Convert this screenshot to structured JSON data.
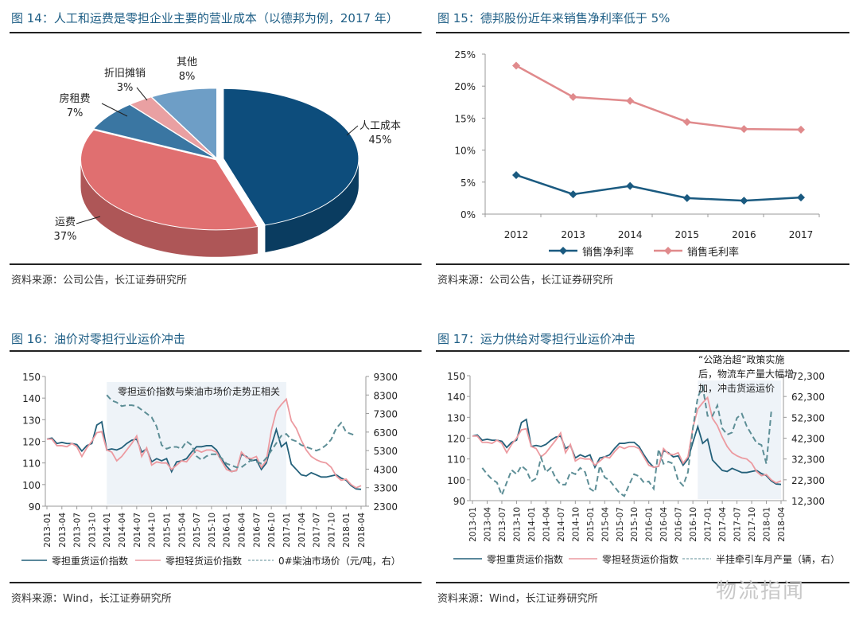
{
  "charts_text": {
    "c14_title": "图 14：人工和运费是零担企业主要的营业成本（以德邦为例，2017 年）",
    "c15_title": "图 15：德邦股份近年来销售净利率低于 5%",
    "c16_title": "图 16：油价对零担行业运价冲击",
    "c17_title": "图 17：运力供给对零担行业运价冲击",
    "c14_source": "资料来源：公司公告，长江证券研究所",
    "c15_source": "资料来源：公司公告，长江证券研究所",
    "c16_source": "资料来源：Wind，长江证券研究所",
    "c17_source": "资料来源：Wind，长江证券研究所",
    "watermark": "物流指闻"
  },
  "chart_data": [
    {
      "type": "pie",
      "title": "图 14：人工和运费是零担企业主要的营业成本（以德邦为例，2017 年）",
      "style": "3d-exploded",
      "slices": [
        {
          "label": "人工成本",
          "value": 45,
          "value_label": "45%",
          "color": "#0d4d7c"
        },
        {
          "label": "运费",
          "value": 37,
          "value_label": "37%",
          "color": "#e06f70"
        },
        {
          "label": "房租费",
          "value": 7,
          "value_label": "7%",
          "color": "#3a76a2"
        },
        {
          "label": "折旧摊销",
          "value": 3,
          "value_label": "3%",
          "color": "#e9a0a2"
        },
        {
          "label": "其他",
          "value": 8,
          "value_label": "8%",
          "color": "#6e9ec6"
        }
      ]
    },
    {
      "type": "line",
      "title": "图 15：德邦股份近年来销售净利率低于 5%",
      "categories": [
        "2012",
        "2013",
        "2014",
        "2015",
        "2016",
        "2017"
      ],
      "ylim": [
        0,
        25
      ],
      "yticks": [
        "0%",
        "5%",
        "10%",
        "15%",
        "20%",
        "25%"
      ],
      "legend": "bottom",
      "grid": false,
      "series": [
        {
          "name": "销售净利率",
          "color": "#1a5a80",
          "marker": "diamond",
          "values": [
            6.1,
            3.1,
            4.4,
            2.5,
            2.1,
            2.6
          ]
        },
        {
          "name": "销售毛利率",
          "color": "#e08a8c",
          "marker": "diamond",
          "values": [
            23.2,
            18.3,
            17.7,
            14.4,
            13.3,
            13.2
          ]
        }
      ]
    },
    {
      "type": "line",
      "title": "图 16：油价对零担行业运价冲击",
      "dual_axis": true,
      "ylim": [
        90,
        150
      ],
      "yticks": [
        "90",
        "100",
        "110",
        "120",
        "130",
        "140",
        "150"
      ],
      "y2lim": [
        2300,
        9300
      ],
      "y2ticks": [
        "2300",
        "3300",
        "4300",
        "5300",
        "6300",
        "7300",
        "8300",
        "9300"
      ],
      "xticks": [
        "2013-01",
        "2013-04",
        "2013-07",
        "2013-10",
        "2014-01",
        "2014-04",
        "2014-07",
        "2014-10",
        "2015-01",
        "2015-04",
        "2015-07",
        "2015-10",
        "2016-01",
        "2016-04",
        "2016-07",
        "2016-10",
        "2017-01",
        "2017-04",
        "2017-07",
        "2017-10",
        "2018-01",
        "2018-04"
      ],
      "shaded_range": [
        "2014-01",
        "2017-01"
      ],
      "annotation": "零担运价指数与柴油市场价走势正相关",
      "legend": "bottom",
      "series": [
        {
          "name": "零担重货运价指数",
          "axis": "left",
          "color": "#23607a",
          "dash": false,
          "values": [
            121,
            121.5,
            119,
            119.5,
            119,
            119,
            118.5,
            115.5,
            118,
            119,
            127.5,
            129,
            116,
            116.5,
            116,
            117,
            119,
            120.5,
            121,
            115,
            116.5,
            110.5,
            112,
            111,
            112,
            106,
            110.5,
            111,
            112,
            115,
            117.5,
            117.5,
            118,
            118,
            116,
            112,
            108.5,
            106,
            106.5,
            114,
            113,
            111,
            111.5,
            107,
            110,
            118,
            125.5,
            117.5,
            119.5,
            109.5,
            107,
            104.5,
            104,
            105.5,
            104.5,
            103.5,
            103.5,
            104,
            104.5,
            103,
            102,
            99.5,
            98,
            97.8
          ]
        },
        {
          "name": "零担轻货运价指数",
          "axis": "left",
          "color": "#ec9aa0",
          "dash": false,
          "values": [
            121,
            121,
            118,
            118,
            117.5,
            119,
            117.5,
            113,
            117,
            120,
            124,
            124.5,
            116,
            115,
            111,
            113,
            116,
            119,
            122.5,
            113,
            117,
            109,
            110.5,
            110,
            110,
            107,
            109,
            111,
            110.5,
            113.5,
            116,
            115,
            116,
            116,
            115,
            111,
            107,
            106,
            106.5,
            115,
            112.5,
            112,
            113,
            108,
            111,
            125,
            134,
            137,
            139.5,
            129.5,
            126,
            120.5,
            116,
            113,
            111.5,
            110.5,
            110,
            108,
            104,
            102,
            102.5,
            100,
            98.5,
            99.5
          ]
        },
        {
          "name": "0#柴油市场价（元/吨，右）",
          "axis": "right",
          "color": "#5d8e96",
          "dash": true,
          "values": [
            null,
            null,
            null,
            null,
            null,
            null,
            null,
            null,
            null,
            null,
            null,
            null,
            8300,
            8000,
            7900,
            7700,
            7750,
            7750,
            7700,
            7500,
            7300,
            7100,
            6600,
            5600,
            5400,
            5500,
            5500,
            5400,
            5800,
            5600,
            5000,
            4800,
            5000,
            5100,
            5100,
            4900,
            4600,
            4500,
            4400,
            4400,
            4600,
            4800,
            4700,
            4600,
            4900,
            5300,
            5700,
            6100,
            6200,
            5900,
            5800,
            5600,
            5500,
            5400,
            5300,
            5400,
            5600,
            5900,
            6500,
            6800,
            6300,
            6200,
            6100,
            null
          ]
        }
      ]
    },
    {
      "type": "line",
      "title": "图 17：运力供给对零担行业运价冲击",
      "dual_axis": true,
      "ylim": [
        90,
        150
      ],
      "yticks": [
        "90",
        "100",
        "110",
        "120",
        "130",
        "140",
        "150"
      ],
      "y2lim": [
        12300,
        72300
      ],
      "y2ticks": [
        "12,300",
        "22,300",
        "32,300",
        "42,300",
        "52,300",
        "62,300",
        "72,300"
      ],
      "xticks": [
        "2013-01",
        "2013-04",
        "2013-07",
        "2013-10",
        "2014-01",
        "2014-04",
        "2014-07",
        "2014-10",
        "2015-01",
        "2015-04",
        "2015-07",
        "2015-10",
        "2016-01",
        "2016-04",
        "2016-07",
        "2016-10",
        "2017-01",
        "2017-04",
        "2017-07",
        "2017-10",
        "2018-01",
        "2018-04"
      ],
      "shaded_range": [
        "2016-11",
        "2018-04"
      ],
      "annotation_lines": [
        "“公路治超”政策实施",
        "后，物流车产量大幅增",
        "加，冲击货运运价"
      ],
      "legend": "bottom",
      "series": [
        {
          "name": "零担重货运价指数",
          "axis": "left",
          "color": "#23607a",
          "dash": false,
          "values": [
            121,
            121.5,
            119,
            119.5,
            119,
            119,
            118.5,
            115.5,
            118,
            119,
            127.5,
            129,
            116,
            116.5,
            116,
            117,
            119,
            120.5,
            121,
            115,
            116.5,
            110.5,
            112,
            111,
            112,
            106,
            110.5,
            111,
            112,
            115,
            117.5,
            117.5,
            118,
            118,
            116,
            112,
            108.5,
            106,
            106.5,
            114,
            113,
            111,
            111.5,
            107,
            110,
            118,
            125.5,
            117.5,
            119.5,
            109.5,
            107,
            104.5,
            104,
            105.5,
            104.5,
            103.5,
            103.5,
            104,
            104.5,
            103,
            102,
            99.5,
            98,
            97.8
          ]
        },
        {
          "name": "零担轻货运价指数",
          "axis": "left",
          "color": "#ec9aa0",
          "dash": false,
          "values": [
            121,
            121,
            118,
            118,
            117.5,
            119,
            117.5,
            113,
            117,
            120,
            124,
            124.5,
            116,
            115,
            111,
            113,
            116,
            119,
            122.5,
            113,
            117,
            109,
            110.5,
            110,
            110,
            107,
            109,
            111,
            110.5,
            113.5,
            116,
            115,
            116,
            116,
            115,
            111,
            107,
            106,
            106.5,
            115,
            112.5,
            112,
            113,
            108,
            111,
            125,
            134,
            137,
            139.5,
            129.5,
            126,
            120.5,
            116,
            113,
            111.5,
            110.5,
            110,
            108,
            104,
            102,
            102.5,
            100,
            98.5,
            99.5
          ]
        },
        {
          "name": "半挂牵引车月产量（辆，右）",
          "axis": "right",
          "color": "#5d8e96",
          "dash": true,
          "values": [
            null,
            null,
            28000,
            25000,
            22500,
            21000,
            15000,
            21000,
            27000,
            25000,
            29000,
            27000,
            21500,
            23000,
            33000,
            26000,
            28000,
            23000,
            20000,
            20000,
            26000,
            25000,
            28000,
            26000,
            18000,
            16500,
            29000,
            23500,
            22000,
            19000,
            16000,
            14500,
            20000,
            25000,
            24000,
            21000,
            21500,
            18000,
            37000,
            30000,
            31000,
            30000,
            22000,
            19500,
            26000,
            47000,
            62000,
            67000,
            53000,
            53000,
            58000,
            47000,
            44000,
            45000,
            52000,
            54000,
            48000,
            44000,
            40000,
            39000,
            30000,
            55000,
            null,
            null
          ]
        }
      ]
    }
  ]
}
